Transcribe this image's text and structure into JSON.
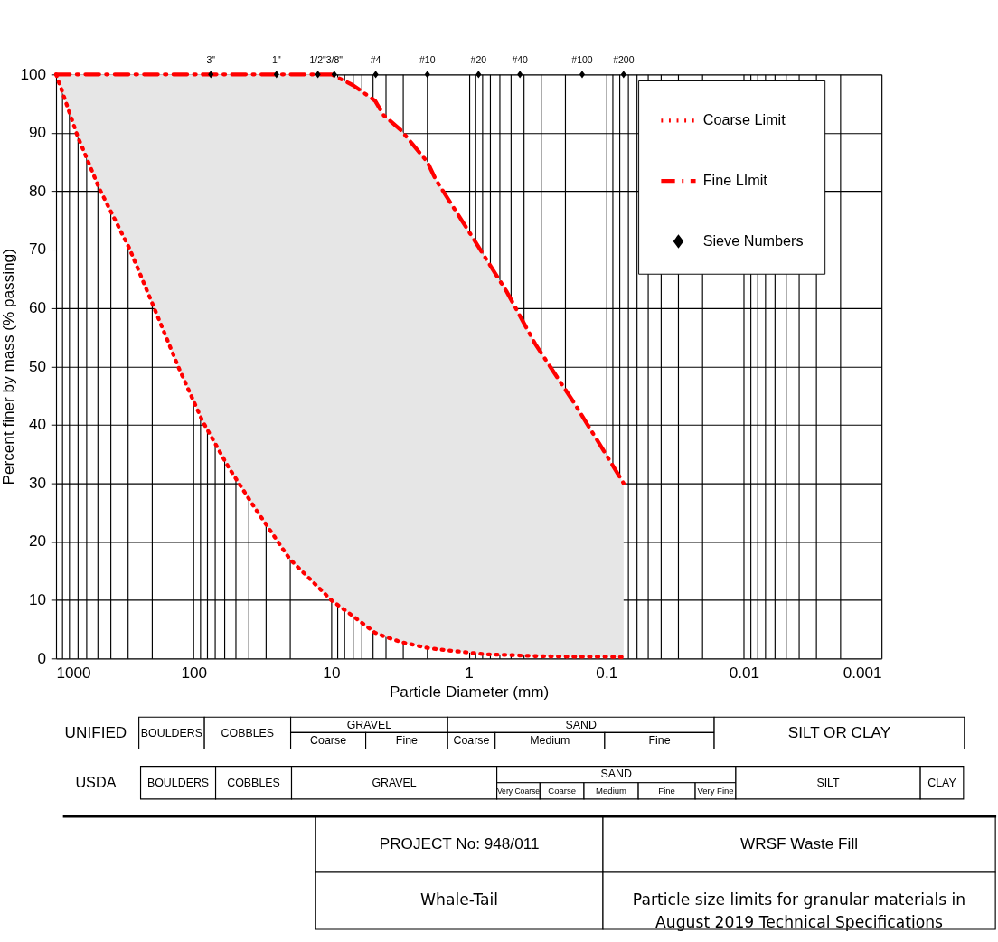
{
  "chart_data": {
    "type": "line",
    "xlabel": "Particle Diameter (mm)",
    "ylabel": "Percent finer by mass (% passing)",
    "log": "x",
    "xlim": [
      1000,
      0.001
    ],
    "ylim": [
      0,
      100
    ],
    "xticks": [
      1000,
      {
        "value": 900,
        "label": null
      },
      {
        "value": 800,
        "label": null
      },
      {
        "value": 700,
        "label": null
      },
      {
        "value": 600,
        "label": null
      },
      {
        "value": 500,
        "label": null
      },
      {
        "value": 400,
        "label": null
      },
      {
        "value": 300,
        "label": null
      },
      {
        "value": 200,
        "label": null
      },
      100,
      {
        "value": 90,
        "label": null
      },
      {
        "value": 80,
        "label": null
      },
      {
        "value": 70,
        "label": null
      },
      {
        "value": 60,
        "label": null
      },
      {
        "value": 50,
        "label": null
      },
      {
        "value": 40,
        "label": null
      },
      {
        "value": 30,
        "label": null
      },
      {
        "value": 20,
        "label": null
      },
      10,
      {
        "value": 9,
        "label": null
      },
      {
        "value": 8,
        "label": null
      },
      {
        "value": 7,
        "label": null
      },
      {
        "value": 6,
        "label": null
      },
      {
        "value": 5,
        "label": null
      },
      {
        "value": 4,
        "label": null
      },
      {
        "value": 3,
        "label": null
      },
      {
        "value": 2,
        "label": null
      },
      1,
      {
        "value": 0.9,
        "label": null
      },
      {
        "value": 0.8,
        "label": null
      },
      {
        "value": 0.7,
        "label": null
      },
      {
        "value": 0.6,
        "label": null
      },
      {
        "value": 0.5,
        "label": null
      },
      {
        "value": 0.4,
        "label": null
      },
      {
        "value": 0.3,
        "label": null
      },
      {
        "value": 0.2,
        "label": null
      },
      0.1,
      {
        "value": 0.09,
        "label": null
      },
      {
        "value": 0.08,
        "label": null
      },
      {
        "value": 0.07,
        "label": null
      },
      {
        "value": 0.06,
        "label": null
      },
      {
        "value": 0.05,
        "label": null
      },
      {
        "value": 0.04,
        "label": null
      },
      {
        "value": 0.03,
        "label": null
      },
      {
        "value": 0.02,
        "label": null
      },
      0.01,
      {
        "value": 0.009,
        "label": null
      },
      {
        "value": 0.008,
        "label": null
      },
      {
        "value": 0.007,
        "label": null
      },
      {
        "value": 0.006,
        "label": null
      },
      {
        "value": 0.005,
        "label": null
      },
      {
        "value": 0.004,
        "label": null
      },
      {
        "value": 0.003,
        "label": null
      },
      {
        "value": 0.002,
        "label": null
      },
      0.001
    ],
    "yticks": [
      0,
      10,
      20,
      30,
      40,
      50,
      60,
      70,
      80,
      90,
      100
    ],
    "grid": true,
    "legend": "top right",
    "series": [
      {
        "name": "Coarse Limit",
        "color": "#ff0000",
        "line_style": "dotted",
        "x": [
          1000,
          891,
          697,
          486,
          293,
          204,
          127,
          86,
          56,
          36,
          20,
          9.9,
          7,
          4.8,
          4.15,
          3.1,
          2,
          1.74,
          0.91,
          0.73,
          0.53,
          0.33,
          0.17,
          0.097,
          0.075
        ],
        "values": [
          100,
          96.7,
          89.4,
          80.5,
          70.2,
          61.3,
          49.5,
          40.6,
          32.8,
          25.8,
          17,
          9.9,
          7.3,
          4.4,
          3.8,
          2.8,
          1.8,
          1.6,
          0.9,
          0.7,
          0.6,
          0.4,
          0.3,
          0.3,
          0.2
        ]
      },
      {
        "name": "Fine LImit",
        "color": "#ff0000",
        "line_style": "dashed",
        "x": [
          1000,
          891,
          697,
          486,
          293,
          204,
          127,
          86,
          56,
          36,
          20,
          9.9,
          7,
          4.8,
          4.15,
          3.1,
          2,
          1.74,
          0.91,
          0.73,
          0.53,
          0.33,
          0.17,
          0.097,
          0.075
        ],
        "values": [
          100,
          100,
          100,
          100,
          100,
          100,
          100,
          100,
          100,
          100,
          100,
          100,
          98.2,
          95.5,
          93,
          90.4,
          85,
          82,
          71.6,
          68,
          62.8,
          53.9,
          43.6,
          34.3,
          30
        ]
      },
      {
        "type": "scatter",
        "name": "Sieve Numbers",
        "color": "#000000",
        "marker": "diamond",
        "x": [
          75,
          25,
          12.5,
          9.5,
          4.75,
          2,
          0.85,
          0.425,
          0.15,
          0.075
        ],
        "values": [
          100,
          100,
          100,
          100,
          100,
          100,
          100,
          100,
          100,
          100
        ]
      }
    ],
    "annotations": [
      {
        "text": "3\"",
        "x": 75,
        "y": 100
      },
      {
        "text": "1\"",
        "x": 25,
        "y": 100
      },
      {
        "text": "1/2\"",
        "x": 12.5,
        "y": 100
      },
      {
        "text": "3/8\"",
        "x": 9.5,
        "y": 100
      },
      {
        "text": "#4",
        "x": 4.75,
        "y": 100
      },
      {
        "text": "#10",
        "x": 2,
        "y": 100
      },
      {
        "text": "#20",
        "x": 0.85,
        "y": 100
      },
      {
        "text": "#40",
        "x": 0.425,
        "y": 100
      },
      {
        "text": "#100",
        "x": 0.15,
        "y": 100
      },
      {
        "text": "#200",
        "x": 0.075,
        "y": 100
      },
      "UNIFIED",
      "BOULDERS",
      "COBBLES",
      "GRAVEL",
      "Coarse",
      "Fine",
      "SAND",
      "Coarse",
      "Medium",
      "Fine",
      "SILT OR CLAY",
      "USDA",
      "BOULDERS",
      "COBBLES",
      "GRAVEL",
      "SAND",
      "Very Coarse",
      "Coarse",
      "Medium",
      "Fine",
      "Very Fine",
      "SILT",
      "CLAY",
      "PROJECT No: 948/011",
      "WRSF Waste Fill",
      "Whale-Tail",
      "Particle size limits for granular materials in\nAugust 2019 Technical Specifications"
    ]
  }
}
